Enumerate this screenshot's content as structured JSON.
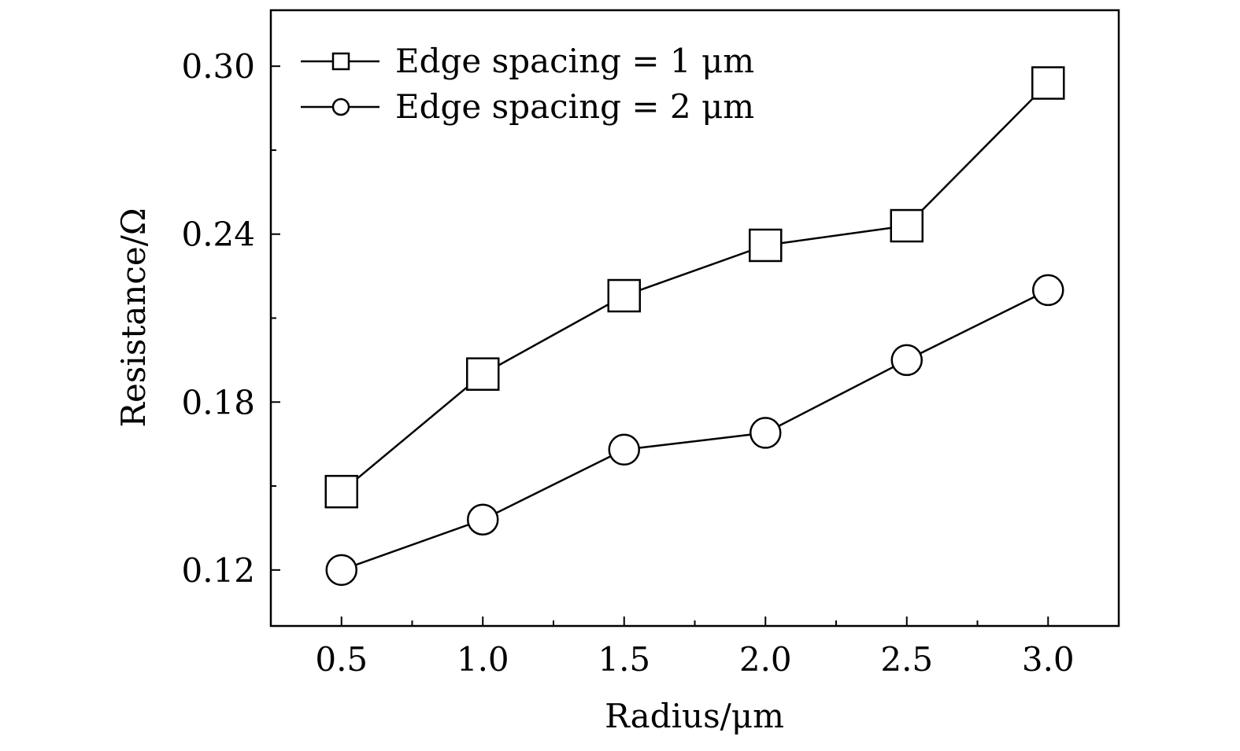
{
  "chart_data": {
    "type": "line",
    "title": "",
    "xlabel": "Radius/μm",
    "ylabel": "Resistance/Ω",
    "xlim": [
      0.25,
      3.25
    ],
    "ylim": [
      0.1,
      0.32
    ],
    "x_ticks": [
      0.5,
      1.0,
      1.5,
      2.0,
      2.5,
      3.0
    ],
    "x_tick_labels": [
      "0.5",
      "1.0",
      "1.5",
      "2.0",
      "2.5",
      "3.0"
    ],
    "x_minor_ticks": [
      0.75,
      1.25,
      1.75,
      2.25,
      2.75
    ],
    "y_ticks": [
      0.12,
      0.18,
      0.24,
      0.3
    ],
    "y_tick_labels": [
      "0.12",
      "0.18",
      "0.24",
      "0.30"
    ],
    "y_minor_ticks": [
      0.15,
      0.21,
      0.27
    ],
    "grid": false,
    "legend_position": "top-left",
    "series": [
      {
        "name": "Edge spacing = 1 μm",
        "marker": "square",
        "x": [
          0.5,
          1.0,
          1.5,
          2.0,
          2.5,
          3.0
        ],
        "values": [
          0.148,
          0.19,
          0.218,
          0.236,
          0.243,
          0.294
        ]
      },
      {
        "name": "Edge spacing = 2 μm",
        "marker": "circle",
        "x": [
          0.5,
          1.0,
          1.5,
          2.0,
          2.5,
          3.0
        ],
        "values": [
          0.12,
          0.138,
          0.163,
          0.169,
          0.195,
          0.22
        ]
      }
    ]
  }
}
